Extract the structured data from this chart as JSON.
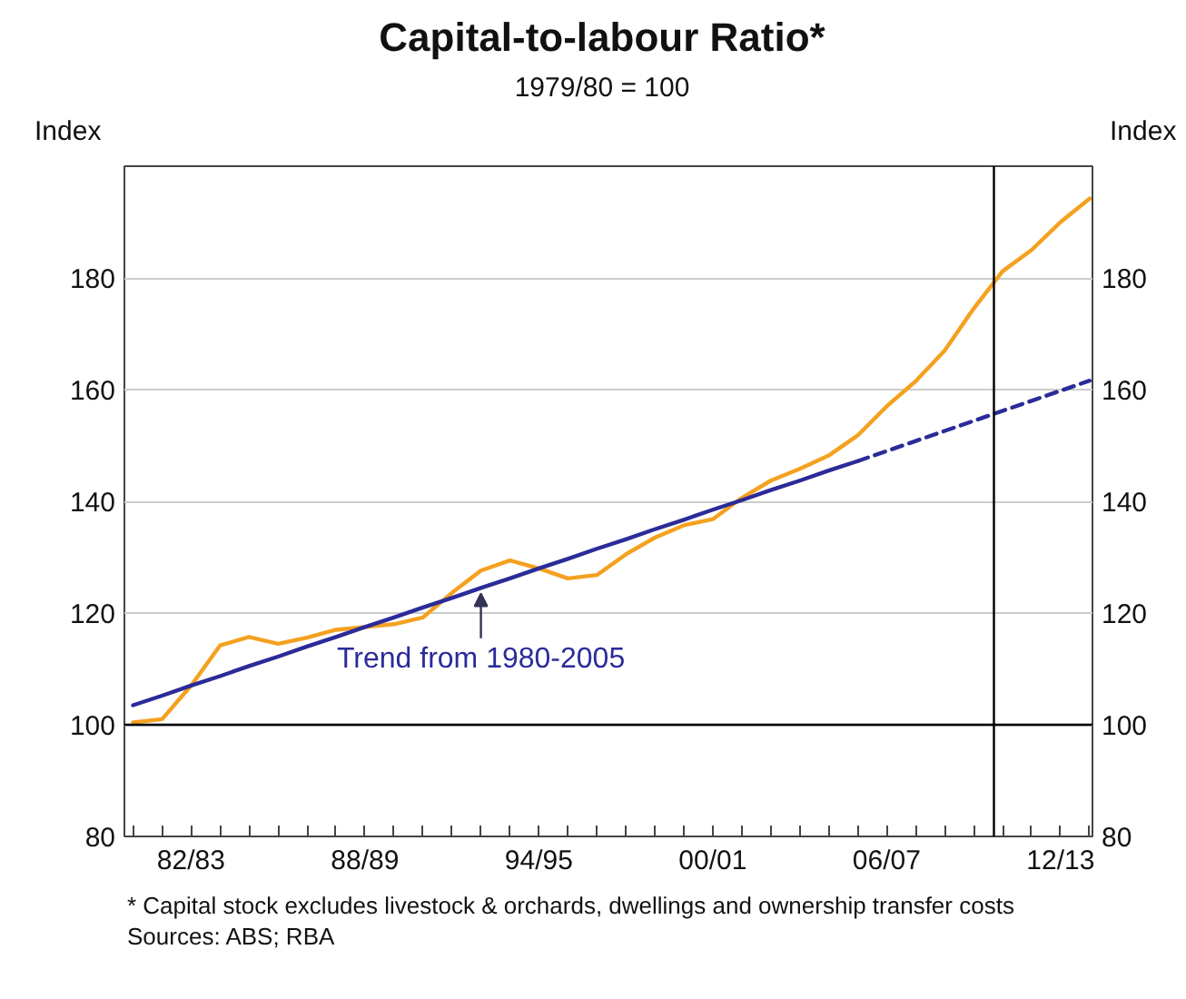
{
  "chart_data": {
    "type": "line",
    "title": "Capital-to-labour Ratio*",
    "subtitle": "1979/80 = 100",
    "ylabel": "Index",
    "y2label": "Index",
    "categories": [
      null,
      null,
      "82/83",
      null,
      null,
      null,
      null,
      null,
      "88/89",
      null,
      null,
      null,
      null,
      null,
      "94/95",
      null,
      null,
      null,
      null,
      null,
      "00/01",
      null,
      null,
      null,
      null,
      null,
      "06/07",
      null,
      null,
      null,
      null,
      null,
      "12/13",
      null
    ],
    "series": [
      {
        "color": "#f4a11f",
        "values": [
          100.4,
          101.0,
          107.0,
          114.2,
          115.7,
          114.5,
          115.6,
          117.0,
          117.5,
          118.0,
          119.2,
          123.6,
          127.6,
          129.4,
          128.0,
          126.2,
          126.8,
          130.5,
          133.5,
          135.7,
          136.8,
          140.6,
          143.7,
          145.8,
          148.2,
          151.8,
          157.0,
          161.5,
          167.0,
          174.5,
          181.2,
          185.0,
          190.0,
          194.2
        ]
      },
      {
        "color": "#2b2b99",
        "values": [
          103.5,
          105.2,
          107.0,
          108.7,
          110.5,
          112.2,
          114.0,
          115.7,
          117.5,
          119.2,
          121.0,
          122.7,
          124.5,
          126.2,
          128.0,
          129.7,
          131.5,
          133.2,
          135.0,
          136.7,
          138.5,
          140.2,
          142.0,
          143.7,
          145.5,
          147.2,
          null,
          null,
          null,
          null,
          null,
          null,
          null,
          null
        ],
        "line_style": "solid"
      },
      {
        "color": "#2b2b99",
        "values": [
          null,
          null,
          null,
          null,
          null,
          null,
          null,
          null,
          null,
          null,
          null,
          null,
          null,
          null,
          null,
          null,
          null,
          null,
          null,
          null,
          null,
          null,
          null,
          null,
          null,
          147.2,
          149.0,
          150.8,
          152.6,
          154.4,
          156.2,
          158.0,
          159.8,
          161.6
        ],
        "line_style": "dashed"
      }
    ],
    "ylim": [
      80,
      200
    ],
    "yticks": [
      80,
      100,
      120,
      140,
      160,
      180
    ],
    "y2lim": [
      80,
      200
    ],
    "y2ticks": [
      80,
      100,
      120,
      140,
      160,
      180
    ],
    "grid": "y",
    "ref_lines": [
      {
        "axis": "y",
        "value": 100,
        "color": "#000000"
      }
    ],
    "annotations": [
      {
        "text": "Trend from 1980-2005",
        "y": 124.5
      },
      "*    Capital stock excludes livestock & orchards, dwellings and ownership transfer costs",
      "Sources: ABS; RBA"
    ]
  }
}
